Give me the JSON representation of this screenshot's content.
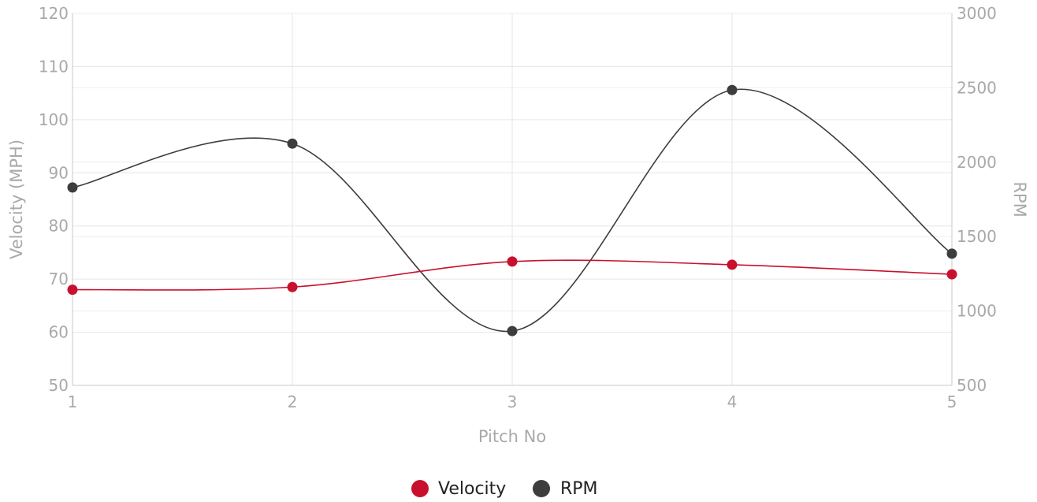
{
  "chart_data": {
    "type": "line",
    "x": [
      1,
      2,
      3,
      4,
      5
    ],
    "xlabel": "Pitch No",
    "ylabel_left": "Velocity (MPH)",
    "ylabel_right": "RPM",
    "ylim_left": [
      50,
      120
    ],
    "ylim_right": [
      500,
      3000
    ],
    "yticks_left": [
      50,
      60,
      70,
      80,
      90,
      100,
      110,
      120
    ],
    "yticks_right": [
      500,
      1000,
      1500,
      2000,
      2500,
      3000
    ],
    "grid": true,
    "legend_position": "bottom",
    "smooth": true,
    "series": [
      {
        "name": "Velocity",
        "axis": "left",
        "color": "#c8102e",
        "values": [
          68.0,
          68.5,
          73.3,
          72.7,
          70.9
        ]
      },
      {
        "name": "RPM",
        "axis": "right",
        "color": "#3d3d3d",
        "values": [
          1830,
          2125,
          865,
          2485,
          1385
        ]
      }
    ]
  }
}
